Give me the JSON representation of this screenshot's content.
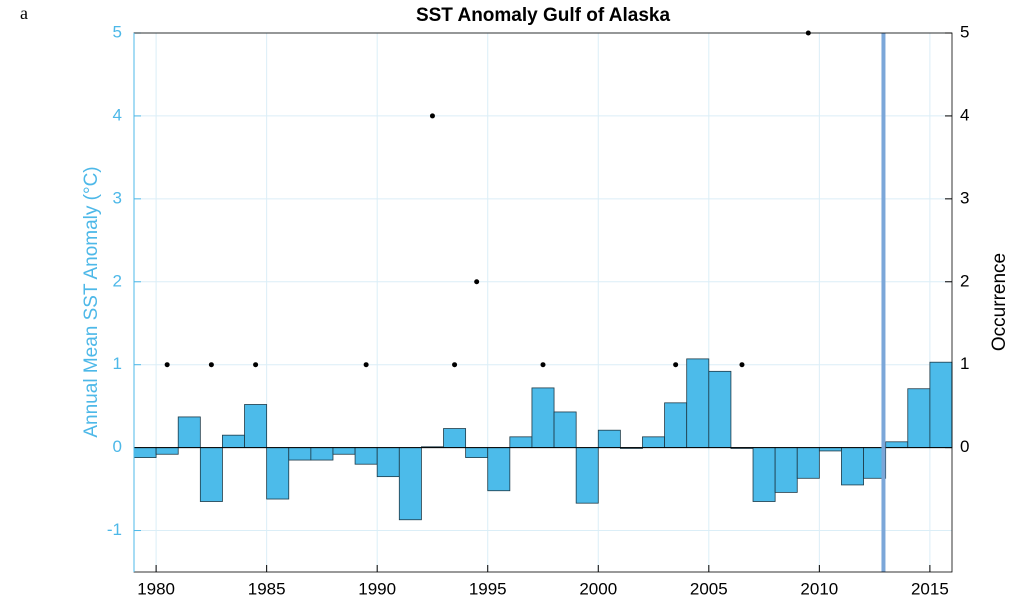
{
  "panel_label": "a",
  "chart_data": {
    "type": "histogram",
    "title": "SST Anomaly Gulf of Alaska",
    "ylabel": "Annual Mean SST Anomaly (°C)",
    "y2label": "Occurrence",
    "bins": [
      1979,
      1980,
      1981,
      1982,
      1983,
      1984,
      1985,
      1986,
      1987,
      1988,
      1989,
      1990,
      1991,
      1992,
      1993,
      1994,
      1995,
      1996,
      1997,
      1998,
      1999,
      2000,
      2001,
      2002,
      2003,
      2004,
      2005,
      2006,
      2007,
      2008,
      2009,
      2010,
      2011,
      2012,
      2013,
      2014,
      2015,
      2016
    ],
    "values": [
      -0.12,
      -0.08,
      0.37,
      -0.65,
      0.15,
      0.52,
      -0.62,
      -0.15,
      -0.15,
      -0.08,
      -0.2,
      -0.35,
      -0.87,
      0.01,
      0.23,
      -0.12,
      -0.52,
      0.13,
      0.72,
      0.43,
      -0.67,
      0.21,
      -0.01,
      0.13,
      0.54,
      1.07,
      0.92,
      -0.01,
      -0.65,
      -0.54,
      -0.37,
      -0.04,
      -0.45,
      -0.37,
      0.07,
      0.71,
      1.03
    ],
    "color": "#4cbbea",
    "overlay": {
      "type": "scatter",
      "axis": "y2",
      "color": "#000000",
      "x": [
        1980.5,
        1982.5,
        1984.5,
        1989.5,
        1992.5,
        1993.5,
        1994.5,
        1997.5,
        2003.5,
        2006.5,
        2009.5
      ],
      "values": [
        1,
        1,
        1,
        1,
        4,
        1,
        2,
        1,
        1,
        1,
        5
      ]
    },
    "vline": {
      "x": 2012.9,
      "color": "#7ba7d9"
    },
    "xlim": [
      1979,
      2016
    ],
    "xticks": [
      1980,
      1985,
      1990,
      1995,
      2000,
      2005,
      2010,
      2015
    ],
    "ylim": [
      -1.5,
      5
    ],
    "yticks": [
      -1,
      0,
      1,
      2,
      3,
      4,
      5
    ],
    "y2lim": [
      -1.5,
      5
    ],
    "y2ticks": [
      0,
      1,
      2,
      3,
      4,
      5
    ],
    "grid": true
  }
}
